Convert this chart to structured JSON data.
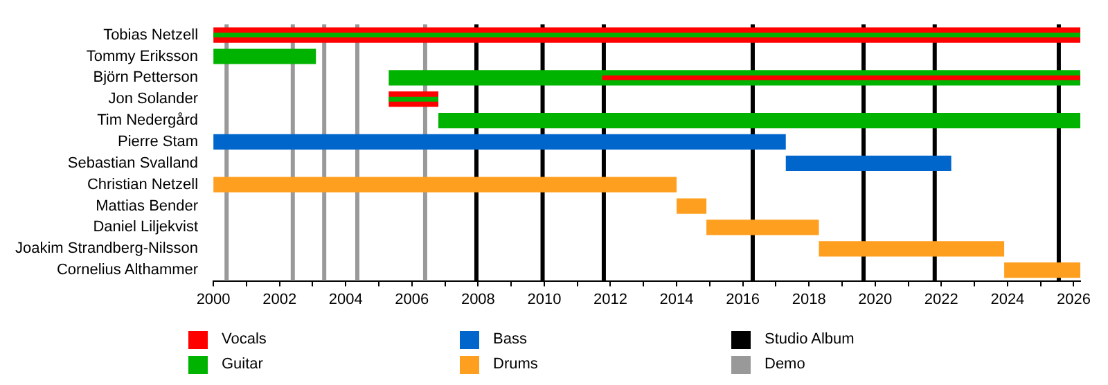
{
  "chart_data": {
    "type": "bar",
    "orientation": "horizontal",
    "categories": [
      "Tobias Netzell",
      "Tommy Eriksson",
      "Björn Petterson",
      "Jon Solander",
      "Tim Nedergård",
      "Pierre Stam",
      "Sebastian Svalland",
      "Christian Netzell",
      "Mattias Bender",
      "Daniel Liljekvist",
      "Joakim Strandberg-Nilsson",
      "Cornelius Althammer"
    ],
    "series": [
      {
        "name": "Vocals",
        "color": "#ff0000",
        "base": [
          2000,
          null,
          2011.75,
          2005.3,
          null,
          null,
          null,
          null,
          null,
          null,
          null,
          null
        ],
        "values": [
          26.2,
          null,
          14.45,
          1.5,
          null,
          null,
          null,
          null,
          null,
          null,
          null,
          null
        ]
      },
      {
        "name": "Guitar",
        "color": "#00b300",
        "base": [
          2000,
          2000,
          2005.3,
          2005.3,
          2006.8,
          null,
          null,
          null,
          null,
          null,
          null,
          null
        ],
        "values": [
          26.2,
          3.1,
          20.9,
          1.5,
          19.4,
          null,
          null,
          null,
          null,
          null,
          null,
          null
        ]
      },
      {
        "name": "Bass",
        "color": "#0066cc",
        "base": [
          null,
          null,
          null,
          null,
          null,
          2000,
          2017.3,
          null,
          null,
          null,
          null,
          null
        ],
        "values": [
          null,
          null,
          null,
          null,
          null,
          17.3,
          5.0,
          null,
          null,
          null,
          null,
          null
        ]
      },
      {
        "name": "Drums",
        "color": "#ff9f1f",
        "base": [
          null,
          null,
          null,
          null,
          null,
          null,
          null,
          2000,
          2014.0,
          2014.9,
          2018.3,
          2023.9
        ],
        "values": [
          null,
          null,
          null,
          null,
          null,
          null,
          null,
          14.0,
          0.9,
          3.4,
          5.6,
          2.3
        ]
      }
    ],
    "xlim": [
      2000,
      2026.2
    ],
    "xticks": [
      2000,
      {
        "value": 2001,
        "label": null
      },
      2002,
      {
        "value": 2003,
        "label": null
      },
      2004,
      {
        "value": 2005,
        "label": null
      },
      2006,
      {
        "value": 2007,
        "label": null
      },
      2008,
      {
        "value": 2009,
        "label": null
      },
      2010,
      {
        "value": 2011,
        "label": null
      },
      2012,
      {
        "value": 2013,
        "label": null
      },
      2014,
      {
        "value": 2015,
        "label": null
      },
      2016,
      {
        "value": 2017,
        "label": null
      },
      2018,
      {
        "value": 2019,
        "label": null
      },
      2020,
      {
        "value": 2021,
        "label": null
      },
      2022,
      {
        "value": 2023,
        "label": null
      },
      2024,
      {
        "value": 2025,
        "label": null
      },
      2026
    ],
    "ref_lines": [
      {
        "axis": "x",
        "value": 2007.95,
        "label": "Studio Album",
        "color": "#000000"
      },
      {
        "axis": "x",
        "value": 2009.95,
        "color": "#000000"
      },
      {
        "axis": "x",
        "value": 2011.8,
        "color": "#000000"
      },
      {
        "axis": "x",
        "value": 2016.3,
        "color": "#000000"
      },
      {
        "axis": "x",
        "value": 2019.65,
        "color": "#000000"
      },
      {
        "axis": "x",
        "value": 2021.8,
        "color": "#000000"
      },
      {
        "axis": "x",
        "value": 2025.55,
        "color": "#000000"
      },
      {
        "axis": "x",
        "value": 2000.4,
        "label": "Demo",
        "color": "#999999"
      },
      {
        "axis": "x",
        "value": 2002.4,
        "color": "#999999"
      },
      {
        "axis": "x",
        "value": 2003.35,
        "color": "#999999"
      },
      {
        "axis": "x",
        "value": 2004.35,
        "color": "#999999"
      },
      {
        "axis": "x",
        "value": 2006.4,
        "color": "#999999"
      }
    ],
    "grid": false,
    "legend": "bottom"
  }
}
